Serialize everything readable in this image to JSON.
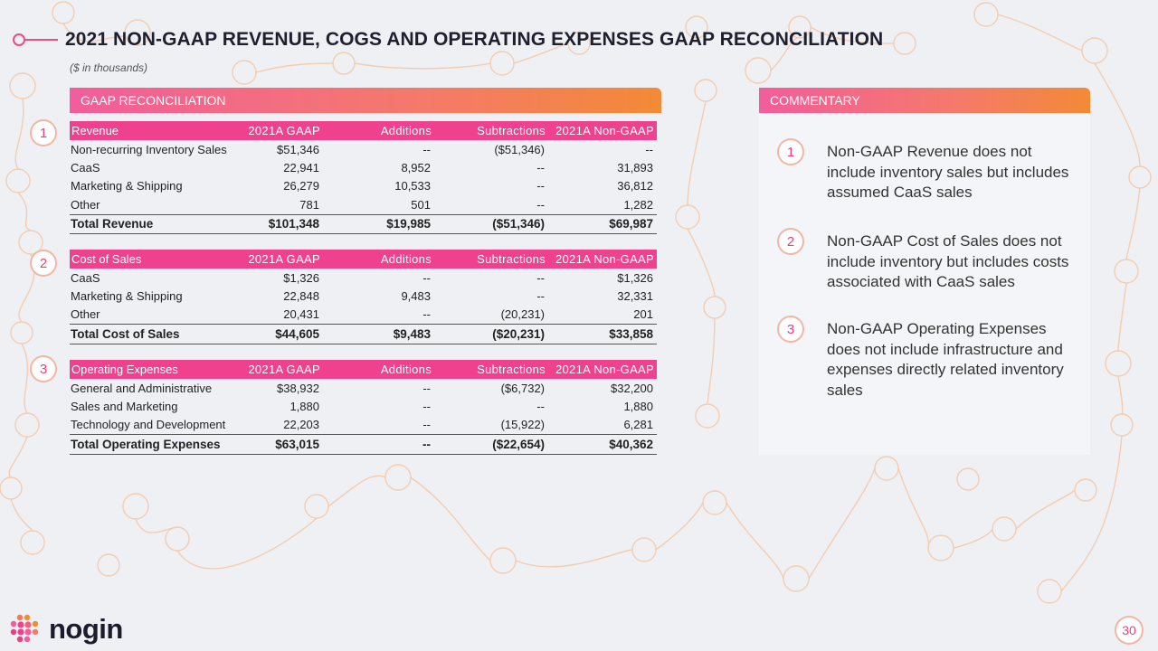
{
  "header": {
    "title": "2021 NON-GAAP REVENUE, COGS AND OPERATING EXPENSES GAAP RECONCILIATION",
    "subtitle": "($ in thousands)"
  },
  "left_band": "GAAP RECONCILIATION",
  "right_band": "COMMENTARY",
  "markers": [
    "1",
    "2",
    "3"
  ],
  "tables": {
    "revenue": {
      "header": [
        "Revenue",
        "2021A GAAP",
        "Additions",
        "Subtractions",
        "2021A Non-GAAP"
      ],
      "rows": [
        [
          "Non-recurring Inventory Sales",
          "$51,346",
          "--",
          "($51,346)",
          "--"
        ],
        [
          "CaaS",
          "22,941",
          "8,952",
          "--",
          "31,893"
        ],
        [
          "Marketing & Shipping",
          "26,279",
          "10,533",
          "--",
          "36,812"
        ],
        [
          "Other",
          "781",
          "501",
          "--",
          "1,282"
        ]
      ],
      "total": [
        "Total Revenue",
        "$101,348",
        "$19,985",
        "($51,346)",
        "$69,987"
      ]
    },
    "cost_of_sales": {
      "header": [
        "Cost of Sales",
        "2021A GAAP",
        "Additions",
        "Subtractions",
        "2021A Non-GAAP"
      ],
      "rows": [
        [
          "CaaS",
          "$1,326",
          "--",
          "--",
          "$1,326"
        ],
        [
          "Marketing & Shipping",
          "22,848",
          "9,483",
          "--",
          "32,331"
        ],
        [
          "Other",
          "20,431",
          "--",
          "(20,231)",
          "201"
        ]
      ],
      "total": [
        "Total Cost of Sales",
        "$44,605",
        "$9,483",
        "($20,231)",
        "$33,858"
      ]
    },
    "operating_expenses": {
      "header": [
        "Operating Expenses",
        "2021A GAAP",
        "Additions",
        "Subtractions",
        "2021A Non-GAAP"
      ],
      "rows": [
        [
          "General and Administrative",
          "$38,932",
          "--",
          "($6,732)",
          "$32,200"
        ],
        [
          "Sales and Marketing",
          "1,880",
          "--",
          "--",
          "1,880"
        ],
        [
          "Technology and Development",
          "22,203",
          "--",
          "(15,922)",
          "6,281"
        ]
      ],
      "total": [
        "Total Operating Expenses",
        "$63,015",
        "--",
        "($22,654)",
        "$40,362"
      ]
    }
  },
  "commentary": [
    {
      "num": "1",
      "text": "Non-GAAP Revenue does not include inventory sales but includes assumed CaaS sales"
    },
    {
      "num": "2",
      "text": "Non-GAAP Cost of Sales does not include inventory but includes costs associated with CaaS sales"
    },
    {
      "num": "3",
      "text": "Non-GAAP Operating Expenses does not include infrastructure and expenses directly related inventory sales"
    }
  ],
  "logo": {
    "text": "nogin"
  },
  "page_number": "30",
  "colors": {
    "accent": "#f0418e",
    "gradient_start": "#f25d9c",
    "gradient_end": "#f38a36",
    "ring": "#f3b6a3"
  }
}
